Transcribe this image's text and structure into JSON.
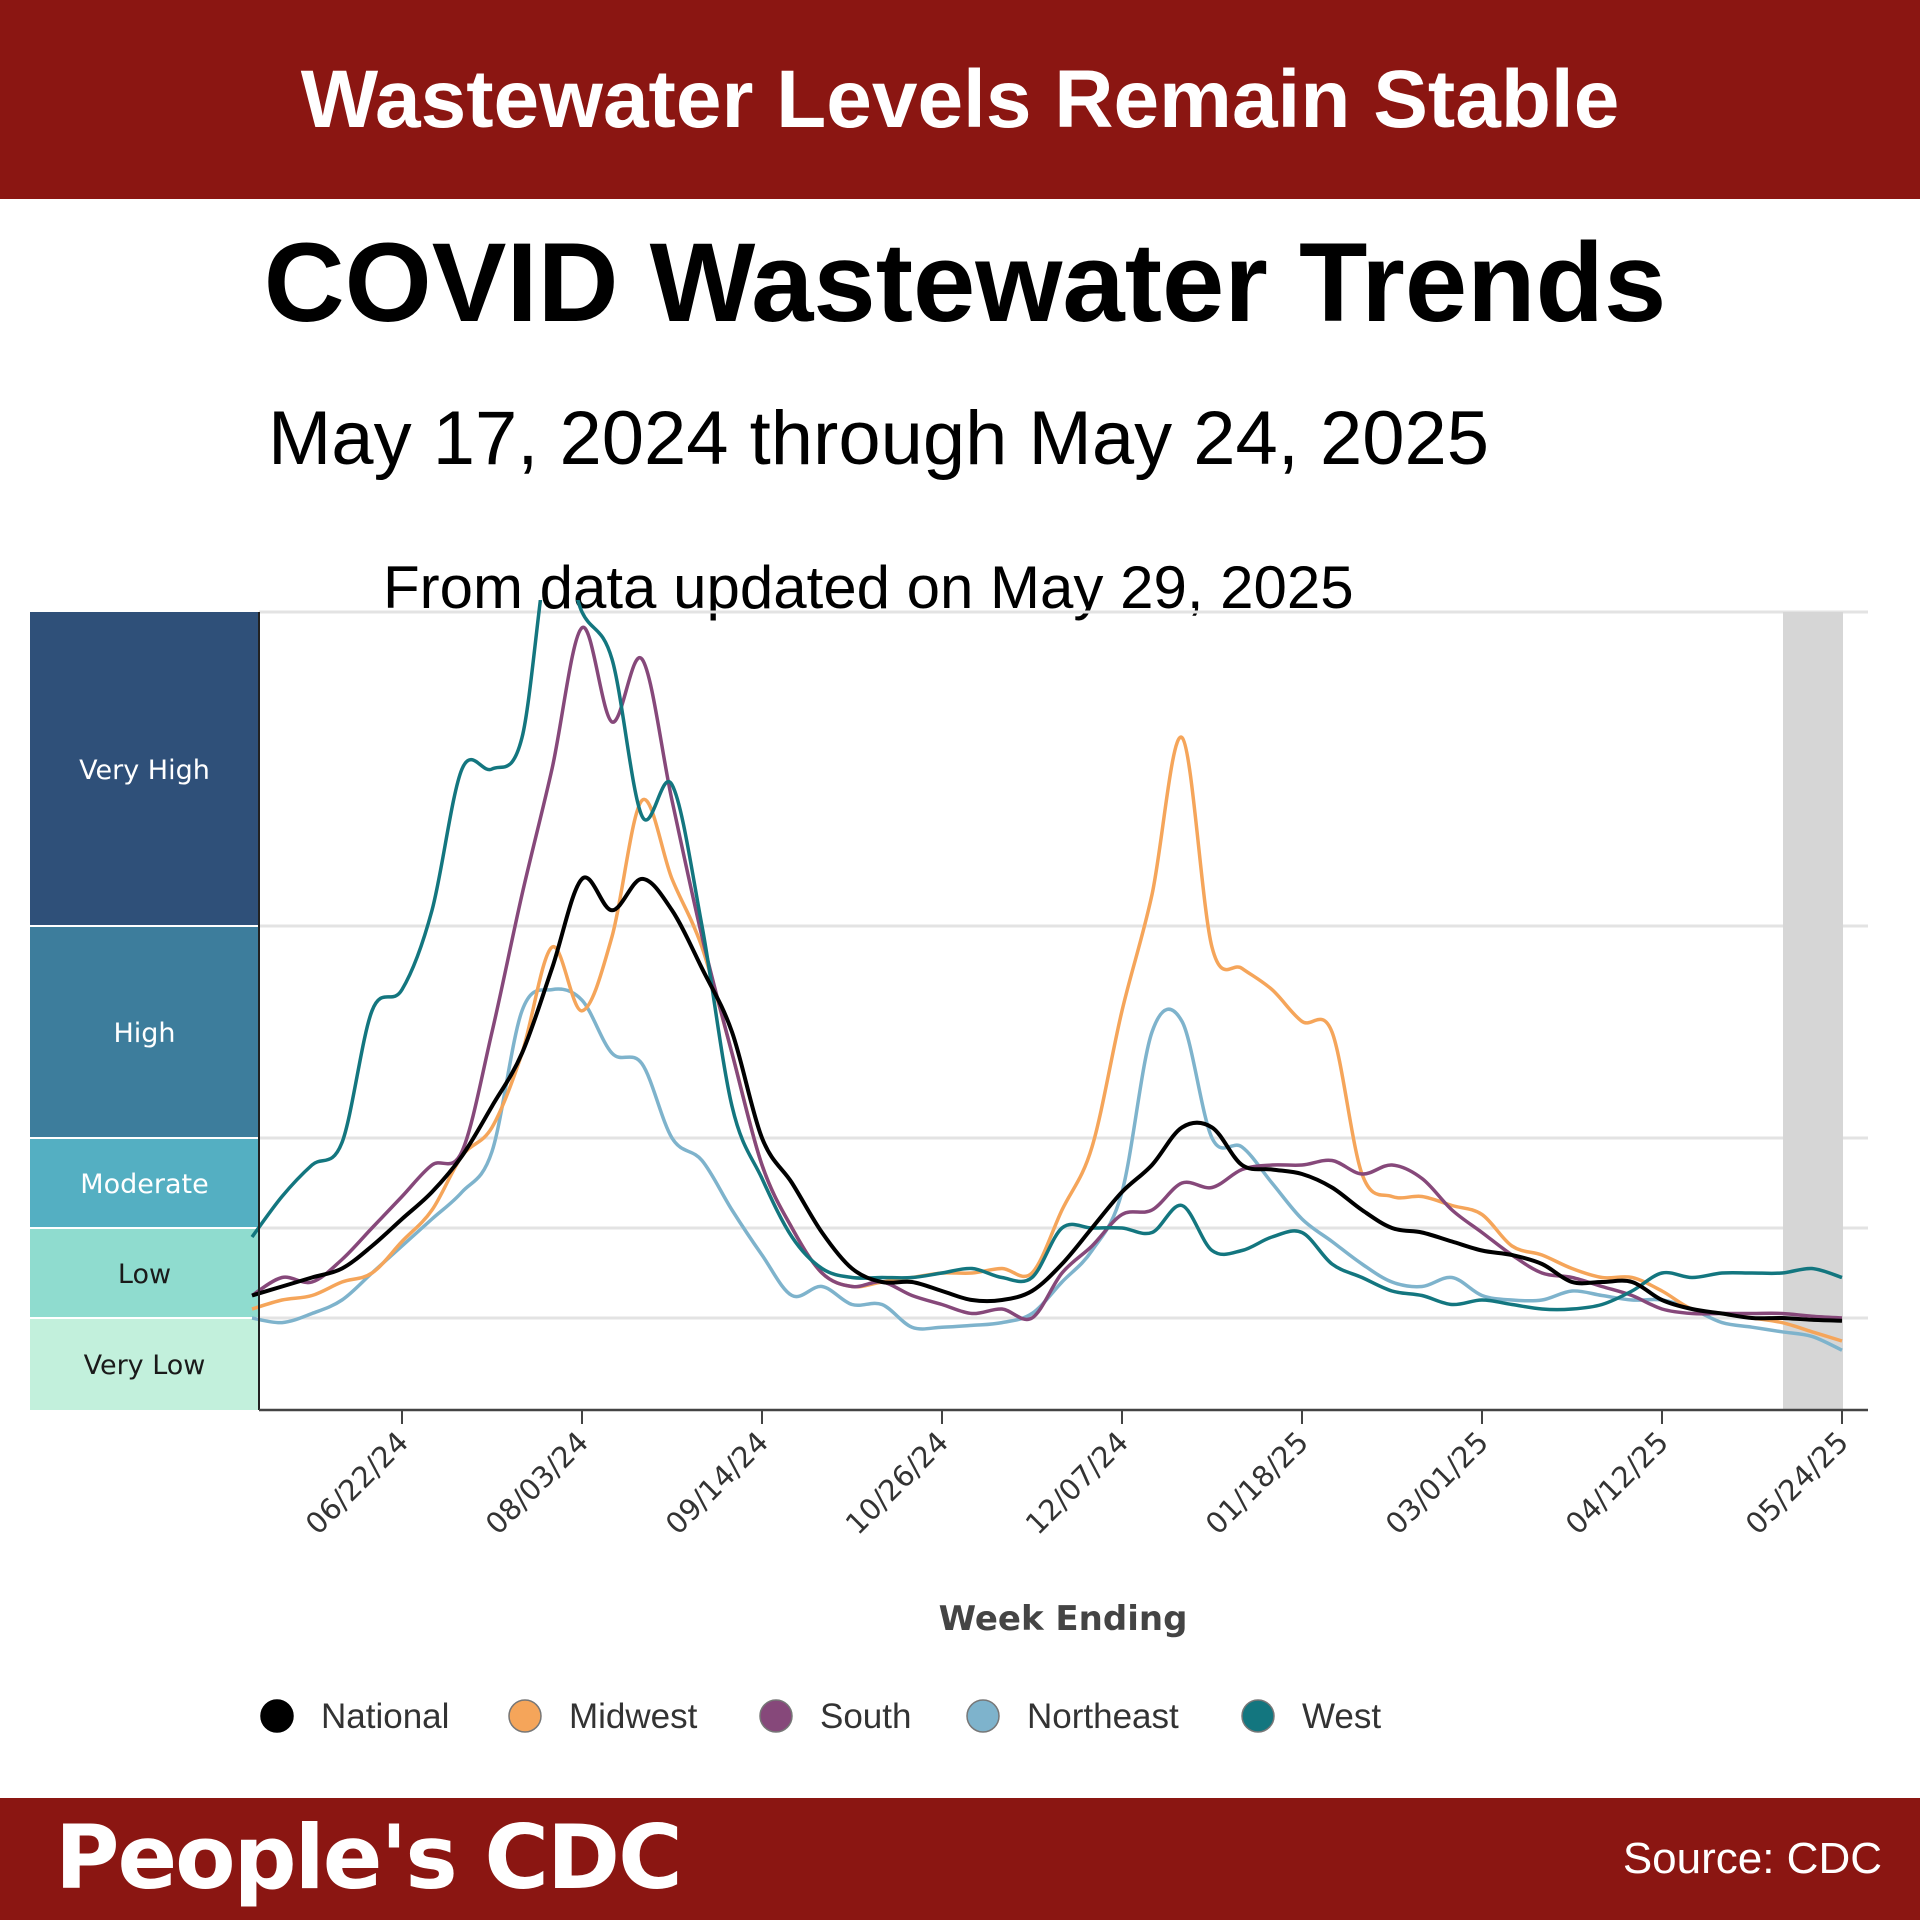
{
  "banner": {
    "headline": "Wastewater Levels Remain Stable"
  },
  "header": {
    "title": "COVID Wastewater Trends",
    "date_range": "May 17, 2024 through May 24, 2025",
    "updated": "From data updated on May 29, 2025"
  },
  "footer": {
    "brand": "People's CDC",
    "source": "Source: CDC"
  },
  "colors": {
    "banner": "#8b1612"
  },
  "chart_data": {
    "type": "line",
    "title": "COVID Wastewater Trends",
    "xlabel": "Week Ending",
    "ylabel": "",
    "x_tick_labels": [
      "06/22/24",
      "08/03/24",
      "09/14/24",
      "10/26/24",
      "12/07/24",
      "01/18/25",
      "03/01/25",
      "04/12/25",
      "05/24/25"
    ],
    "levels": [
      {
        "label": "Very High",
        "color": "#2f5079",
        "text_color": "#ffffff",
        "range": [
          4,
          5
        ]
      },
      {
        "label": "High",
        "color": "#3d7d9c",
        "text_color": "#ffffff",
        "range": [
          3,
          4
        ]
      },
      {
        "label": "Moderate",
        "color": "#54afc2",
        "text_color": "#ffffff",
        "range": [
          2,
          3
        ]
      },
      {
        "label": "Low",
        "color": "#8fdccf",
        "text_color": "#1a1a1a",
        "range": [
          1,
          2
        ]
      },
      {
        "label": "Very Low",
        "color": "#c2f0dc",
        "text_color": "#1a1a1a",
        "range": [
          0,
          1
        ]
      }
    ],
    "ylim": [
      0,
      5
    ],
    "y_units": "wastewater activity level (0=bottom of Very Low, 5=top of Very High)",
    "provisional_period_shaded": true,
    "legend_position": "bottom",
    "x": [
      -5,
      -4,
      -3,
      -2,
      -1,
      0,
      1,
      2,
      3,
      4,
      5,
      6,
      7,
      8,
      9,
      10,
      11,
      12,
      13,
      14,
      15,
      16,
      17,
      18,
      19,
      20,
      21,
      22,
      23,
      24,
      25,
      26,
      27,
      28,
      29,
      30,
      31,
      32,
      33,
      34,
      35,
      36,
      37,
      38,
      39,
      40,
      41,
      42,
      43,
      44,
      45,
      46,
      47,
      48
    ],
    "x_note": "weeks relative to week ending 06/22/24 (tick every 6 weeks)",
    "series": [
      {
        "name": "National",
        "color": "#000000",
        "values": [
          1.25,
          1.35,
          1.45,
          1.55,
          1.8,
          2.1,
          2.4,
          2.8,
          3.15,
          3.4,
          3.8,
          4.15,
          4.05,
          4.15,
          4.05,
          3.8,
          3.5,
          3.0,
          2.5,
          1.95,
          1.55,
          1.4,
          1.4,
          1.3,
          1.2,
          1.2,
          1.3,
          1.6,
          2.0,
          2.4,
          2.7,
          3.05,
          3.05,
          2.7,
          2.65,
          2.6,
          2.45,
          2.2,
          2.0,
          1.95,
          1.85,
          1.75,
          1.7,
          1.6,
          1.4,
          1.4,
          1.4,
          1.2,
          1.1,
          1.05,
          1.0,
          1.0,
          0.98,
          0.97
        ]
      },
      {
        "name": "Midwest",
        "color": "#f5a55a",
        "values": [
          1.1,
          1.2,
          1.25,
          1.4,
          1.5,
          1.85,
          2.2,
          2.8,
          3.05,
          3.4,
          3.9,
          3.6,
          3.95,
          4.4,
          4.15,
          3.9,
          3.4,
          2.7,
          2.0,
          1.5,
          1.35,
          1.4,
          1.45,
          1.5,
          1.5,
          1.55,
          1.5,
          2.2,
          2.9,
          3.6,
          4.1,
          4.6,
          3.9,
          3.8,
          3.7,
          3.55,
          3.5,
          2.6,
          2.35,
          2.35,
          2.25,
          2.15,
          1.8,
          1.7,
          1.55,
          1.45,
          1.45,
          1.3,
          1.1,
          1.05,
          1.0,
          0.95,
          0.85,
          0.75
        ]
      },
      {
        "name": "South",
        "color": "#86487a",
        "values": [
          1.25,
          1.45,
          1.4,
          1.65,
          2.0,
          2.35,
          2.7,
          2.85,
          3.5,
          4.1,
          4.5,
          4.95,
          4.65,
          4.85,
          4.4,
          3.95,
          3.4,
          2.7,
          2.0,
          1.5,
          1.35,
          1.4,
          1.25,
          1.15,
          1.05,
          1.1,
          1.0,
          1.5,
          1.8,
          2.15,
          2.2,
          2.5,
          2.45,
          2.65,
          2.7,
          2.7,
          2.75,
          2.6,
          2.7,
          2.55,
          2.2,
          1.95,
          1.7,
          1.5,
          1.45,
          1.35,
          1.25,
          1.1,
          1.05,
          1.05,
          1.05,
          1.05,
          1.02,
          1.0
        ]
      },
      {
        "name": "Northeast",
        "color": "#7eb3cc",
        "values": [
          1.0,
          0.95,
          1.05,
          1.2,
          1.5,
          1.8,
          2.1,
          2.4,
          2.85,
          3.6,
          3.7,
          3.65,
          3.4,
          3.35,
          3.0,
          2.75,
          2.2,
          1.7,
          1.25,
          1.35,
          1.15,
          1.15,
          0.9,
          0.9,
          0.92,
          0.95,
          1.05,
          1.4,
          1.75,
          2.4,
          3.5,
          3.55,
          3.0,
          2.9,
          2.5,
          2.1,
          1.85,
          1.6,
          1.4,
          1.35,
          1.45,
          1.25,
          1.2,
          1.2,
          1.3,
          1.25,
          1.2,
          1.2,
          1.1,
          0.95,
          0.9,
          0.85,
          0.8,
          0.65
        ]
      },
      {
        "name": "West",
        "color": "#13767f",
        "values": [
          1.9,
          2.35,
          2.7,
          2.95,
          3.6,
          3.7,
          4.05,
          4.5,
          4.5,
          4.6,
          5.25,
          5.0,
          4.85,
          4.35,
          4.45,
          4.0,
          3.15,
          2.55,
          1.9,
          1.55,
          1.45,
          1.45,
          1.45,
          1.5,
          1.55,
          1.45,
          1.45,
          2.0,
          2.0,
          2.0,
          1.95,
          2.25,
          1.75,
          1.75,
          1.9,
          1.95,
          1.6,
          1.45,
          1.3,
          1.25,
          1.15,
          1.2,
          1.15,
          1.1,
          1.1,
          1.15,
          1.3,
          1.5,
          1.45,
          1.5,
          1.5,
          1.5,
          1.55,
          1.45
        ]
      }
    ]
  }
}
